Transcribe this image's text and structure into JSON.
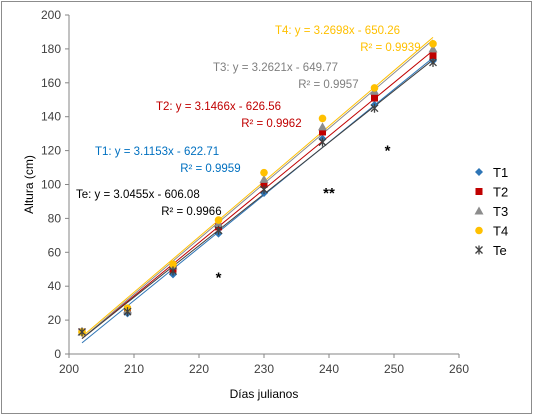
{
  "chart_data": {
    "type": "scatter",
    "title": "",
    "xlabel": "Días julianos",
    "ylabel": "Altura (cm)",
    "xlim": [
      200,
      260
    ],
    "ylim": [
      0,
      200
    ],
    "xticks": [
      200,
      210,
      220,
      230,
      240,
      250,
      260
    ],
    "yticks": [
      0,
      20,
      40,
      60,
      80,
      100,
      120,
      140,
      160,
      180,
      200
    ],
    "grid": false,
    "legend_position": "right",
    "series": [
      {
        "name": "T1",
        "color": "#2e75b6",
        "marker": "diamond",
        "x": [
          202,
          209,
          216,
          223,
          230,
          239,
          247,
          256
        ],
        "y": [
          13,
          24,
          47,
          71,
          95,
          127,
          147,
          173
        ],
        "trend": {
          "slope": 3.1153,
          "intercept": -622.71
        },
        "equation": "T1: y = 3.1153x - 622.71",
        "r2": "R² = 0.9959"
      },
      {
        "name": "T2",
        "color": "#c00000",
        "marker": "square",
        "x": [
          202,
          209,
          216,
          223,
          230,
          239,
          247,
          256
        ],
        "y": [
          13,
          26,
          50,
          75,
          100,
          131,
          151,
          176
        ],
        "trend": {
          "slope": 3.1466,
          "intercept": -626.56
        },
        "equation": "T2: y = 3.1466x - 626.56",
        "r2": "R² = 0.9962"
      },
      {
        "name": "T3",
        "color": "#8c8c8c",
        "marker": "triangle",
        "x": [
          202,
          209,
          216,
          223,
          230,
          239,
          247,
          256
        ],
        "y": [
          13,
          26,
          52,
          77,
          103,
          134,
          155,
          180
        ],
        "trend": {
          "slope": 3.2621,
          "intercept": -649.77
        },
        "equation": "T3: y = 3.2621x - 649.77",
        "r2": "R² = 0.9957"
      },
      {
        "name": "T4",
        "color": "#ffc000",
        "marker": "circle",
        "x": [
          202,
          209,
          216,
          223,
          230,
          239,
          247,
          256
        ],
        "y": [
          13,
          27,
          53,
          79,
          107,
          139,
          157,
          183
        ],
        "trend": {
          "slope": 3.2698,
          "intercept": -650.26
        },
        "equation": "T4: y = 3.2698x - 650.26",
        "r2": "R² = 0.9939"
      },
      {
        "name": "Te",
        "color": "#404040",
        "marker": "star",
        "x": [
          202,
          209,
          216,
          223,
          230,
          239,
          247,
          256
        ],
        "y": [
          13,
          25,
          49,
          73,
          97,
          125,
          145,
          172
        ],
        "trend": {
          "slope": 3.0455,
          "intercept": -606.08
        },
        "equation": "Te: y = 3.0455x - 606.08",
        "r2": "R² = 0.9966"
      }
    ],
    "annotations": [
      {
        "text": "*",
        "x": 223,
        "y": 48
      },
      {
        "text": "**",
        "x": 240,
        "y": 98
      },
      {
        "text": "*",
        "x": 249,
        "y": 123
      }
    ]
  }
}
